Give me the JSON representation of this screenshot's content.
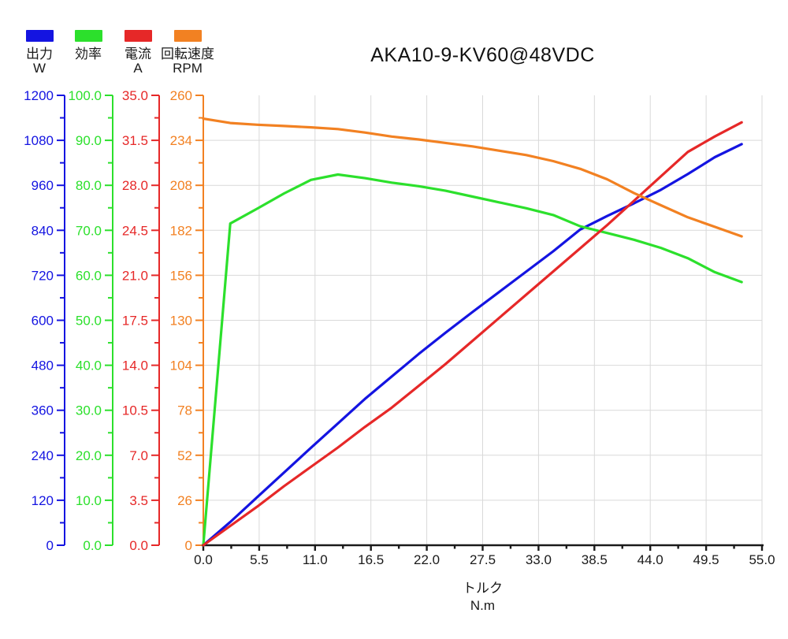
{
  "title": "AKA10-9-KV60@48VDC",
  "chart_data": {
    "type": "line",
    "title": "AKA10-9-KV60@48VDC",
    "x_label": [
      "トルク",
      "N.m"
    ],
    "xlim": [
      0,
      55
    ],
    "grid": true,
    "grid_color": "#d9d9d9",
    "axis_text_color": "#1a1a1a",
    "legend_position": "top-left",
    "x_ticks": [
      "0.0",
      "5.5",
      "11.0",
      "16.5",
      "22.0",
      "27.5",
      "33.0",
      "38.5",
      "44.0",
      "49.5",
      "55.0"
    ],
    "x": [
      0,
      2.65,
      5.3,
      7.95,
      10.6,
      13.25,
      15.9,
      18.55,
      21.2,
      23.85,
      26.5,
      29.15,
      31.8,
      34.45,
      37.1,
      39.75,
      42.4,
      45.05,
      47.7,
      50.35,
      53.0
    ],
    "axes": [
      {
        "name": "出力",
        "unit": "W",
        "color": "#1414e1",
        "min": 0,
        "max": 1200,
        "ticks": [
          "0",
          "120",
          "240",
          "360",
          "480",
          "600",
          "720",
          "840",
          "960",
          "1080",
          "1200"
        ]
      },
      {
        "name": "効率",
        "unit": "",
        "color": "#2ce02c",
        "min": 0,
        "max": 100,
        "ticks": [
          "0.0",
          "10.0",
          "20.0",
          "30.0",
          "40.0",
          "50.0",
          "60.0",
          "70.0",
          "80.0",
          "90.0",
          "100.0"
        ]
      },
      {
        "name": "電流",
        "unit": "A",
        "color": "#e62828",
        "min": 0,
        "max": 35,
        "ticks": [
          "0.0",
          "3.5",
          "7.0",
          "10.5",
          "14.0",
          "17.5",
          "21.0",
          "24.5",
          "28.0",
          "31.5",
          "35.0"
        ]
      },
      {
        "name": "回転速度",
        "unit": "RPM",
        "color": "#f28122",
        "min": 0,
        "max": 260,
        "ticks": [
          "0",
          "26",
          "52",
          "78",
          "104",
          "130",
          "156",
          "182",
          "208",
          "234",
          "260"
        ]
      }
    ],
    "series": [
      {
        "name": "出力 W",
        "axis": 0,
        "values": [
          0,
          62,
          128,
          194,
          260,
          325,
          390,
          450,
          510,
          567,
          622,
          676,
          730,
          784,
          842,
          878,
          912,
          948,
          990,
          1035,
          1070
        ]
      },
      {
        "name": "効率",
        "axis": 1,
        "values": [
          0,
          71.5,
          74.8,
          78.2,
          81.2,
          82.4,
          81.6,
          80.6,
          79.8,
          78.8,
          77.5,
          76.2,
          74.9,
          73.4,
          70.9,
          69.4,
          67.9,
          66.1,
          63.8,
          60.7,
          58.5
        ]
      },
      {
        "name": "電流 A",
        "axis": 2,
        "values": [
          0,
          1.5,
          3.0,
          4.6,
          6.1,
          7.6,
          9.2,
          10.7,
          12.4,
          14.1,
          15.9,
          17.7,
          19.5,
          21.3,
          23.1,
          24.9,
          26.8,
          28.7,
          30.6,
          31.8,
          32.9
        ]
      },
      {
        "name": "回転速度 RPM",
        "axis": 3,
        "values": [
          246.5,
          244,
          243,
          242.3,
          241.5,
          240.5,
          238.5,
          236.2,
          234.5,
          232.5,
          230.5,
          228,
          225.5,
          222,
          217.5,
          211.5,
          203.5,
          196.5,
          189.5,
          184,
          178.5
        ]
      }
    ]
  }
}
